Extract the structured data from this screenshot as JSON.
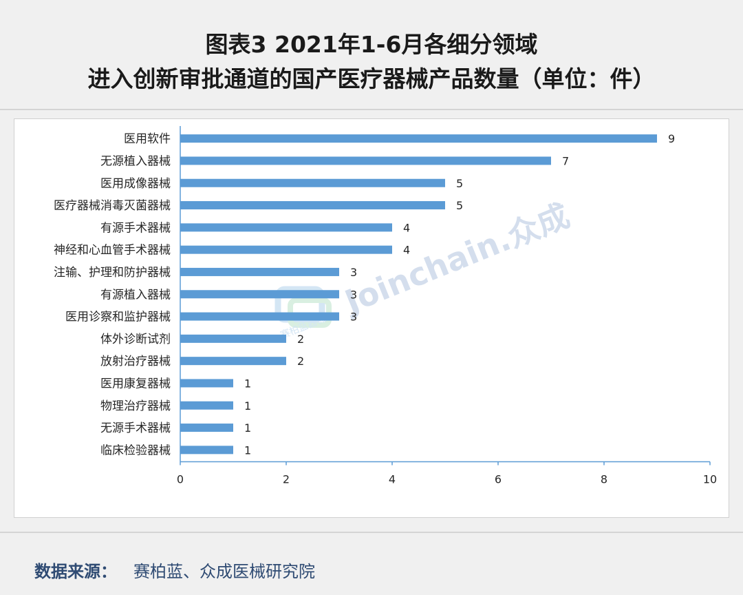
{
  "header": {
    "title_line1": "图表3  2021年1-6月各细分领域",
    "title_line2": "进入创新审批通道的国产医疗器械产品数量（单位：件）"
  },
  "chart_data": {
    "type": "bar",
    "orientation": "horizontal",
    "categories": [
      "医用软件",
      "无源植入器械",
      "医用成像器械",
      "医疗器械消毒灭菌器械",
      "有源手术器械",
      "神经和心血管手术器械",
      "注输、护理和防护器械",
      "有源植入器械",
      "医用诊察和监护器械",
      "体外诊断试剂",
      "放射治疗器械",
      "医用康复器械",
      "物理治疗器械",
      "无源手术器械",
      "临床检验器械"
    ],
    "values": [
      9,
      7,
      5,
      5,
      4,
      4,
      3,
      3,
      3,
      2,
      2,
      1,
      1,
      1,
      1
    ],
    "xlim": [
      0,
      10
    ],
    "xticks": [
      "0",
      "2",
      "4",
      "6",
      "8",
      "10"
    ],
    "bar_color": "#5b9bd5",
    "grid": false,
    "data_labels": true
  },
  "watermark": {
    "text": "Joinchain.众成",
    "small_text": "赛柏蓝器械"
  },
  "footer": {
    "source_label": "数据来源：",
    "source_text": "赛柏蓝、众成医械研究院"
  }
}
